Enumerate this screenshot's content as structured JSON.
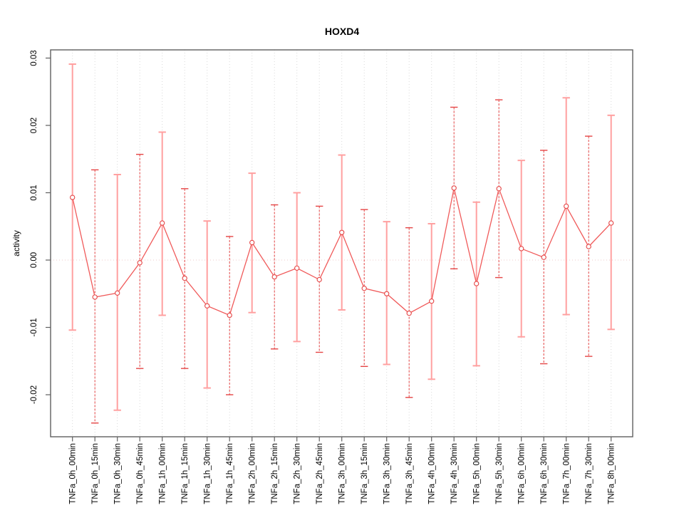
{
  "figure": {
    "background": "#ffffff"
  },
  "chart_data": {
    "type": "line",
    "subtype": "points-with-error-bars",
    "title": "HOXD4",
    "xlabel": "",
    "ylabel": "activity",
    "ylim": [
      -0.0262,
      0.0312
    ],
    "yticks": [
      0.03,
      0.02,
      0.01,
      0.0,
      -0.01,
      -0.02
    ],
    "ytick_labels": [
      "0.03",
      "0.02",
      "0.01",
      "0.00",
      "-0.01",
      "-0.02"
    ],
    "grid": "vertical dotted gridlines at each category; dotted horizontal line at 0",
    "legend": "none",
    "categories": [
      "TNFa_0h_00min",
      "TNFa_0h_15min",
      "TNFa_0h_30min",
      "TNFa_0h_45min",
      "TNFa_1h_00min",
      "TNFa_1h_15min",
      "TNFa_1h_30min",
      "TNFa_1h_45min",
      "TNFa_2h_00min",
      "TNFa_2h_15min",
      "TNFa_2h_30min",
      "TNFa_2h_45min",
      "TNFa_3h_00min",
      "TNFa_3h_15min",
      "TNFa_3h_30min",
      "TNFa_3h_45min",
      "TNFa_4h_00min",
      "TNFa_4h_30min",
      "TNFa_5h_00min",
      "TNFa_5h_30min",
      "TNFa_6h_00min",
      "TNFa_6h_30min",
      "TNFa_7h_00min",
      "TNFa_7h_30min",
      "TNFa_8h_00min"
    ],
    "series": [
      {
        "name": "activity",
        "values": [
          0.0093,
          -0.0055,
          -0.0049,
          -0.0004,
          0.0055,
          -0.0027,
          -0.0068,
          -0.0082,
          0.0026,
          -0.0025,
          -0.0012,
          -0.0029,
          0.0041,
          -0.0042,
          -0.005,
          -0.0079,
          -0.0061,
          0.0107,
          -0.0035,
          0.0106,
          0.0017,
          0.0004,
          0.008,
          0.002,
          0.0055
        ],
        "upper": [
          0.0291,
          0.0134,
          0.0127,
          0.0157,
          0.019,
          0.0106,
          0.0058,
          0.0035,
          0.0129,
          0.0082,
          0.01,
          0.008,
          0.0156,
          0.0075,
          0.0057,
          0.0048,
          0.0054,
          0.0227,
          0.0086,
          0.0238,
          0.0148,
          0.0163,
          0.0241,
          0.0184,
          0.0215
        ],
        "lower": [
          -0.0104,
          -0.0242,
          -0.0223,
          -0.0161,
          -0.0082,
          -0.0161,
          -0.019,
          -0.02,
          -0.0078,
          -0.0132,
          -0.0121,
          -0.0137,
          -0.0074,
          -0.0158,
          -0.0155,
          -0.0204,
          -0.0177,
          -0.0013,
          -0.0157,
          -0.0026,
          -0.0114,
          -0.0154,
          -0.0081,
          -0.0143,
          -0.0103
        ]
      }
    ],
    "colors": {
      "point": "#e54545",
      "line": "#f05a5a",
      "errorbar_dark": "#e54545",
      "errorbar_light": "#ffa0a0",
      "zero_line": "#edcaca",
      "gridline": "#d9d9d9",
      "axis": "#5f5f5f",
      "text": "#000000"
    }
  }
}
